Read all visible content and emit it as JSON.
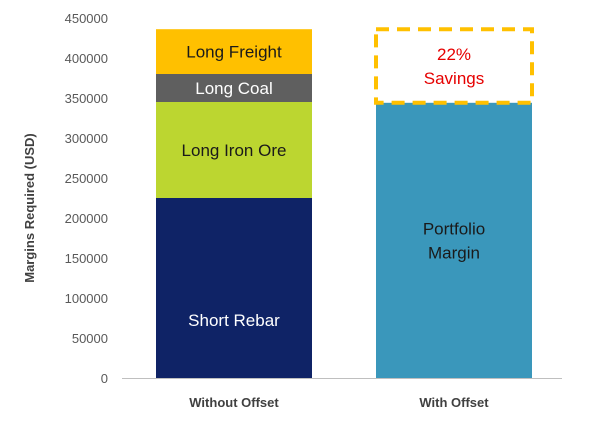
{
  "chart_data": {
    "type": "stacked-bar",
    "ylabel": "Margins Required (USD)",
    "ylim": [
      0,
      450000
    ],
    "yticks": [
      0,
      50000,
      100000,
      150000,
      200000,
      250000,
      300000,
      350000,
      400000,
      450000
    ],
    "grid": false,
    "categories": [
      "Without Offset",
      "With Offset"
    ],
    "bars": [
      {
        "category": "Without Offset",
        "segments": [
          {
            "label": "Short Rebar",
            "value": 225000,
            "color": "#0f2366",
            "label_color": "#ffffff"
          },
          {
            "label": "Long Iron Ore",
            "value": 120000,
            "color": "#bcd630",
            "label_color": "#1a1a1a"
          },
          {
            "label": "Long Coal",
            "value": 35000,
            "color": "#5f5f5f",
            "label_color": "#ffffff"
          },
          {
            "label": "Long Freight",
            "value": 56000,
            "color": "#ffc000",
            "label_color": "#1a1a1a"
          }
        ]
      },
      {
        "category": "With Offset",
        "segments": [
          {
            "label": "Portfolio Margin",
            "label_lines": [
              "Portfolio",
              "Margin"
            ],
            "value": 344000,
            "color": "#3a97bb",
            "label_color": "#1a1a1a"
          }
        ]
      }
    ],
    "annotation": {
      "lines": [
        "22%",
        "Savings"
      ],
      "from": 344000,
      "to": 436000,
      "color": "#e60000",
      "border_color": "#ffc000",
      "style": "dashed"
    }
  }
}
